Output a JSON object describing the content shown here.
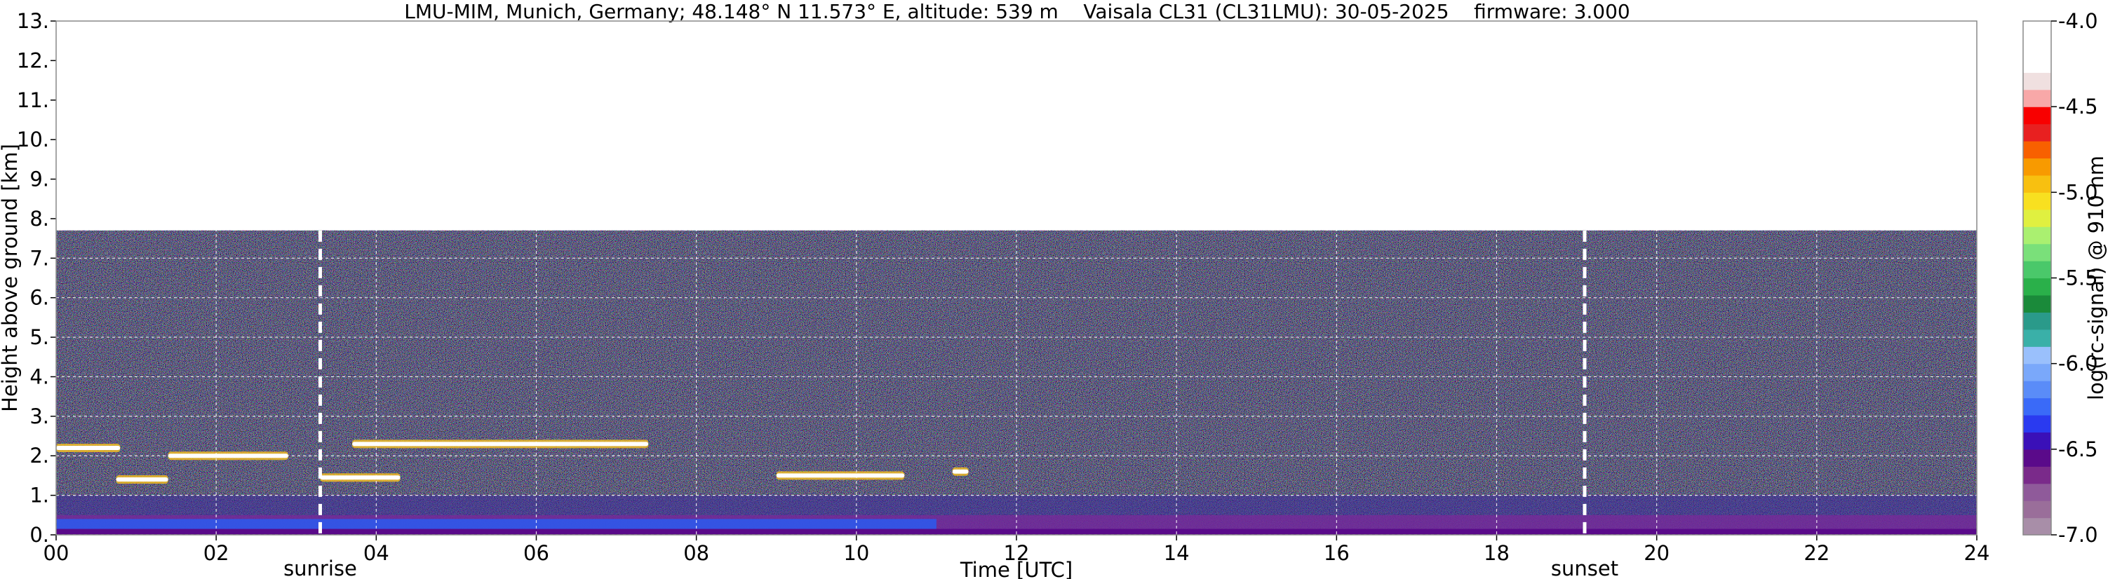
{
  "chart_data": {
    "type": "heatmap",
    "title": "LMU-MIM, Munich, Germany; 48.148° N 11.573° E, altitude: 539 m    Vaisala CL31 (CL31LMU): 30-05-2025    firmware: 3.000",
    "xlabel": "Time [UTC]",
    "ylabel": "Height above ground [km]",
    "xlim": [
      0,
      24
    ],
    "ylim": [
      0,
      13
    ],
    "x_ticks": [
      "00",
      "02",
      "04",
      "06",
      "08",
      "10",
      "12",
      "14",
      "16",
      "18",
      "20",
      "22",
      "24"
    ],
    "y_ticks": [
      "0.",
      "1.",
      "2.",
      "3.",
      "4.",
      "5.",
      "6.",
      "7.",
      "8.",
      "9.",
      "10.",
      "11.",
      "12.",
      "13."
    ],
    "grid": true,
    "data_top_km": 7.7,
    "events": [
      {
        "label": "sunrise",
        "time": 3.3
      },
      {
        "label": "sunset",
        "time": 19.1
      }
    ],
    "cloud_layers": [
      {
        "t_start": 0.0,
        "t_end": 0.8,
        "height_km": 2.2
      },
      {
        "t_start": 0.75,
        "t_end": 1.4,
        "height_km": 1.4
      },
      {
        "t_start": 1.4,
        "t_end": 2.9,
        "height_km": 2.0
      },
      {
        "t_start": 3.3,
        "t_end": 4.3,
        "height_km": 1.45
      },
      {
        "t_start": 3.7,
        "t_end": 7.4,
        "height_km": 2.3
      },
      {
        "t_start": 9.0,
        "t_end": 10.6,
        "height_km": 1.5
      },
      {
        "t_start": 11.2,
        "t_end": 11.4,
        "height_km": 1.6
      }
    ],
    "colorbar": {
      "label": "log(rc-signal) @ 910 nm",
      "min": -7.0,
      "max": -4.0,
      "tick_values": [
        -4.0,
        -4.5,
        -5.0,
        -5.5,
        -6.0,
        -6.5,
        -7.0
      ],
      "tick_labels": [
        "-4.0",
        "-4.5",
        "-5.0",
        "-5.5",
        "-6.0",
        "-6.5",
        "-7.0"
      ],
      "colors": [
        "#a88ea8",
        "#9a6e9a",
        "#8f5a9a",
        "#7a2a8a",
        "#5a0a8a",
        "#3a10b8",
        "#2a3af0",
        "#3a6af8",
        "#5a8cf8",
        "#7aa8fa",
        "#9ac0fc",
        "#3ab0a8",
        "#2a9a8a",
        "#1a8a3a",
        "#2ab04a",
        "#4ac86a",
        "#7ae07a",
        "#aaf070",
        "#e0f040",
        "#f8e020",
        "#f8c010",
        "#f89a00",
        "#f86000",
        "#e82020",
        "#f80000",
        "#f8a8a8",
        "#f0e0e0",
        "#ffffff",
        "#ffffff",
        "#ffffff"
      ]
    }
  }
}
